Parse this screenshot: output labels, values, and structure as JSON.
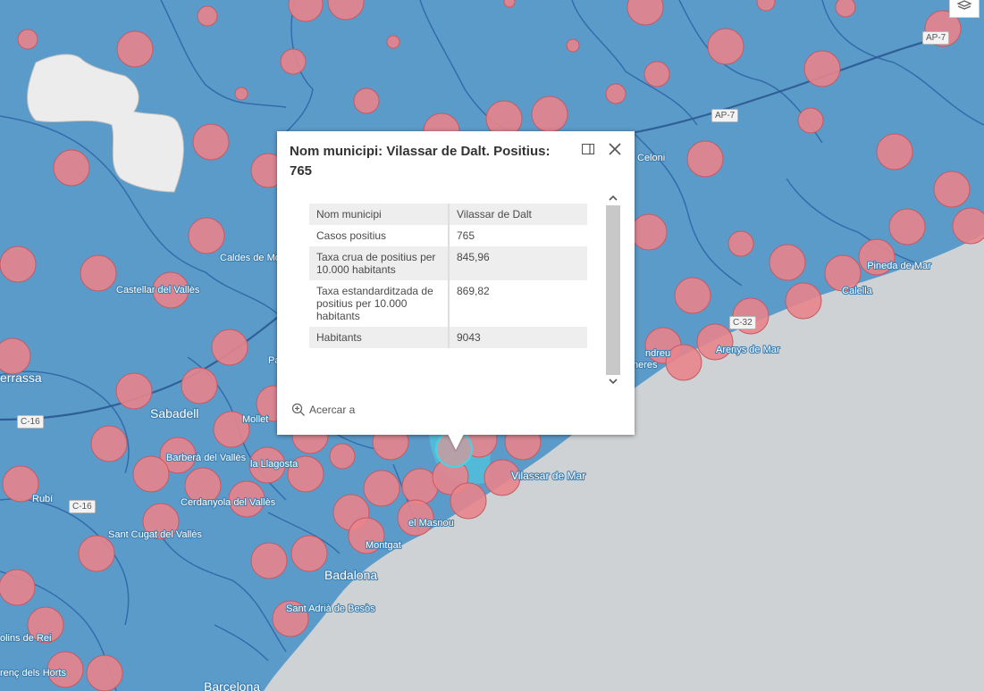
{
  "map": {
    "places": [
      "Celoni",
      "Caldes de Montbui",
      "Castellar del Vallès",
      "errassa",
      "Sabadell",
      "Mollet",
      "Barberà del Vallès",
      "la Llagosta",
      "Rubí",
      "Cerdanyola del Vallès",
      "Sant Cugat del Vallès",
      "Montgat",
      "el Masnou",
      "Vilassar de Mar",
      "Badalona",
      "Sant Adrià de Besòs",
      "olins de Rei",
      "renç dels Horts",
      "Barcelona",
      "Pineda de Mar",
      "Calella",
      "Arenys de Mar",
      "ndreu",
      "neres",
      "Pa"
    ],
    "highways": [
      "AP-7",
      "AP-7",
      "C-32",
      "C-16",
      "C-16"
    ],
    "colors": {
      "land": "#5b9bca",
      "sea": "#cfd2d4",
      "bubble": "#e8848c",
      "border": "#2e64a5",
      "selected": "#4ad3e4",
      "excluded": "#ececec"
    }
  },
  "toolbar": {
    "layers_icon": "layers-icon"
  },
  "popup": {
    "title": "Nom municipi: Vilassar de Dalt. Positius: 765",
    "rows": [
      {
        "key": "Nom municipi",
        "value": "Vilassar de Dalt"
      },
      {
        "key": "Casos positius",
        "value": "765"
      },
      {
        "key": "Taxa crua de positius per 10.000 habitants",
        "value": "845,96"
      },
      {
        "key": "Taxa estandarditzada de positius per 10.000 habitants",
        "value": "869,82"
      },
      {
        "key": "Habitants",
        "value": "9043"
      }
    ],
    "zoom_label": "Acercar a"
  }
}
